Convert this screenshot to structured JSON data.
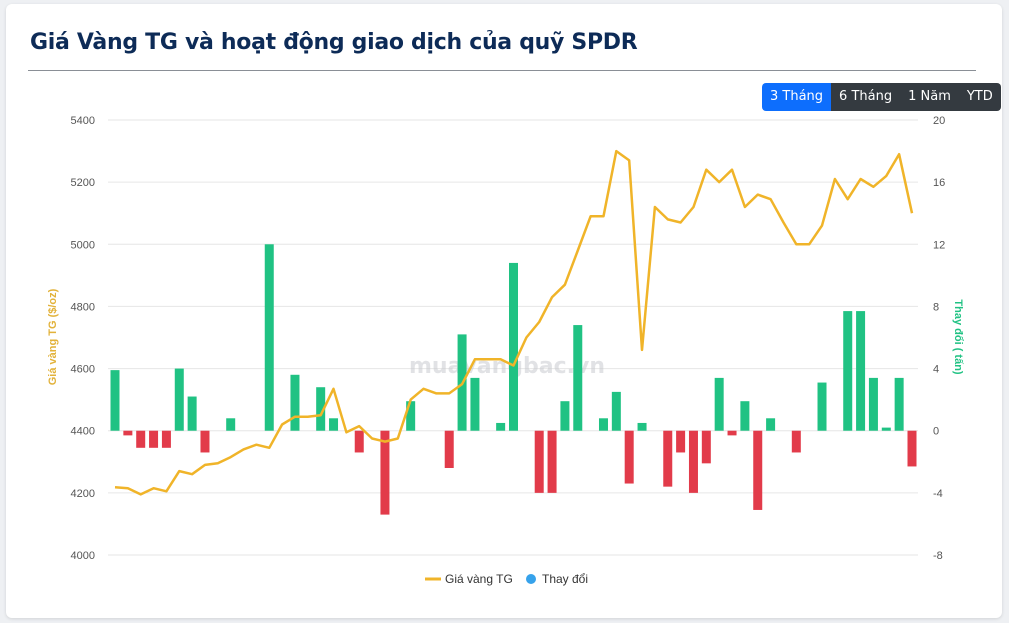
{
  "header": {
    "title": "Giá Vàng TG và hoạt động giao dịch của quỹ SPDR"
  },
  "range_buttons": [
    {
      "label": "3 Tháng",
      "active": true
    },
    {
      "label": "6 Tháng",
      "active": false
    },
    {
      "label": "1 Năm",
      "active": false
    },
    {
      "label": "YTD",
      "active": false
    }
  ],
  "watermark": "muavangbac.vn",
  "colors": {
    "price_line": "#f0b429",
    "bar_up": "#20c283",
    "bar_down": "#e23b4a",
    "change_legend": "#36a2eb",
    "title": "#0d2b57"
  },
  "chart_data": {
    "type": "bar+line",
    "title": "Giá Vàng TG và hoạt động giao dịch của quỹ SPDR",
    "y_left": {
      "label": "Giá vàng TG ($/oz)",
      "ticks": [
        "5400",
        "5200",
        "5000",
        "4800",
        "4600",
        "4400",
        "4200",
        "4000"
      ],
      "min": 4000,
      "max": 5400
    },
    "y_right": {
      "label": "Thay đổi ( tấn)",
      "ticks": [
        "20",
        "16",
        "12",
        "8",
        "4",
        "0",
        "-4",
        "-8"
      ],
      "min": -8,
      "max": 20
    },
    "legend": {
      "position": "bottom",
      "items": [
        "Giá vàng TG",
        "Thay đổi"
      ]
    },
    "grid": true,
    "series": [
      {
        "name": "Giá vàng TG",
        "values": [
          4218,
          4215,
          4195,
          4215,
          4205,
          4270,
          4260,
          4290,
          4295,
          4315,
          4340,
          4355,
          4345,
          4420,
          4445,
          4445,
          4450,
          4535,
          4395,
          4415,
          4375,
          4365,
          4375,
          4500,
          4535,
          4520,
          4520,
          4550,
          4630,
          4630,
          4630,
          4610,
          4700,
          4750,
          4830,
          4870,
          4980,
          5090,
          5090,
          5300,
          5270,
          4660,
          5120,
          5080,
          5070,
          5120,
          5240,
          5200,
          5240,
          5120,
          5160,
          5145,
          5070,
          5000,
          5000,
          5060,
          5210,
          5145,
          5210,
          5185,
          5220,
          5290,
          5100
        ]
      },
      {
        "name": "Thay đổi",
        "values": [
          3.9,
          -0.3,
          -1.1,
          -1.1,
          -1.1,
          4.0,
          2.2,
          -1.4,
          0,
          0.8,
          0,
          0,
          12.0,
          0,
          3.6,
          0,
          2.8,
          0.8,
          0,
          -1.4,
          0,
          -5.4,
          0,
          1.9,
          0,
          0,
          -2.4,
          6.2,
          3.4,
          0,
          0.5,
          10.8,
          0,
          -4.0,
          -4.0,
          1.9,
          6.8,
          0,
          0.8,
          2.5,
          -3.4,
          0.5,
          0,
          -3.6,
          -1.4,
          -4.0,
          -2.1,
          3.4,
          -0.3,
          1.9,
          -5.1,
          0.8,
          0,
          -1.4,
          0,
          3.1,
          0,
          7.7,
          7.7,
          3.4,
          0.2,
          3.4,
          -2.3
        ]
      }
    ]
  }
}
